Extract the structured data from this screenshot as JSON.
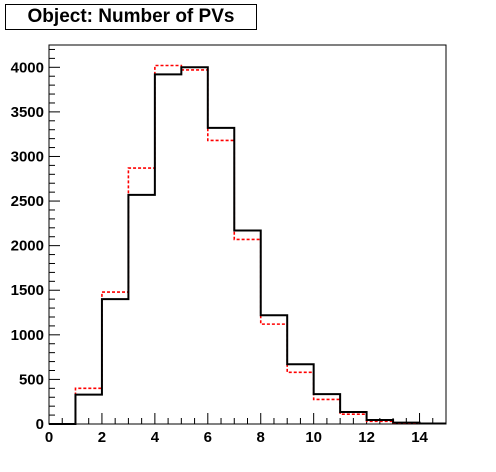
{
  "chart_data": {
    "type": "histogram",
    "title": "Object: Number of PVs",
    "xlabel": "",
    "ylabel": "",
    "xlim": [
      0,
      15
    ],
    "ylim": [
      0,
      4250
    ],
    "bin_edges": [
      0,
      1,
      2,
      3,
      4,
      5,
      6,
      7,
      8,
      9,
      10,
      11,
      12,
      13,
      14,
      15
    ],
    "x_ticks": [
      0,
      2,
      4,
      6,
      8,
      10,
      12,
      14
    ],
    "y_ticks": [
      0,
      500,
      1000,
      1500,
      2000,
      2500,
      3000,
      3500,
      4000
    ],
    "series": [
      {
        "style": "solid",
        "color": "#000000",
        "values": [
          0,
          330,
          1400,
          2570,
          3920,
          4000,
          3320,
          2170,
          1220,
          670,
          335,
          135,
          45,
          15,
          5
        ]
      },
      {
        "style": "dashed",
        "color": "#ff0000",
        "values": [
          0,
          400,
          1480,
          2870,
          4020,
          3970,
          3180,
          2070,
          1120,
          580,
          275,
          110,
          30,
          10,
          3
        ]
      }
    ]
  }
}
